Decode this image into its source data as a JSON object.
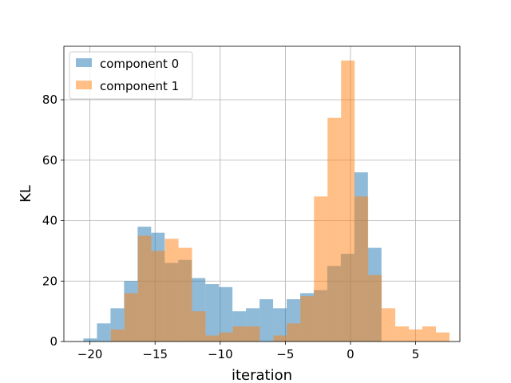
{
  "chart_data": {
    "type": "bar",
    "title": "",
    "xlabel": "iteration",
    "ylabel": "KL",
    "xlim": [
      -22,
      8.4
    ],
    "ylim": [
      0,
      97.7
    ],
    "grid": true,
    "legend_position": "top-left",
    "xticks": [
      -20,
      -15,
      -10,
      -5,
      0,
      5
    ],
    "xtick_labels": [
      "−20",
      "−15",
      "−10",
      "−5",
      "0",
      "5"
    ],
    "yticks": [
      0,
      20,
      40,
      60,
      80
    ],
    "ytick_labels": [
      "0",
      "20",
      "40",
      "60",
      "80"
    ],
    "bin_width": 1.04,
    "series": [
      {
        "name": "component 0",
        "color": "#1f77b4",
        "opacity": 0.5,
        "bin_starts": [
          -20.5,
          -19.46,
          -18.42,
          -17.38,
          -16.34,
          -15.3,
          -14.26,
          -13.22,
          -12.18,
          -11.14,
          -10.1,
          -9.06,
          -8.02,
          -6.98,
          -5.94,
          -4.9,
          -3.86,
          -2.82,
          -1.78,
          -0.74,
          0.3,
          1.34
        ],
        "values": [
          1,
          6,
          11,
          20,
          38,
          36,
          26,
          27,
          21,
          19,
          18,
          10,
          11,
          14,
          11,
          14,
          16,
          17,
          25,
          29,
          56,
          31
        ]
      },
      {
        "name": "component 1",
        "color": "#ff7f0e",
        "opacity": 0.5,
        "bin_starts": [
          -18.4,
          -17.36,
          -16.32,
          -15.28,
          -14.24,
          -13.2,
          -12.16,
          -11.12,
          -10.08,
          -9.04,
          -8.0,
          -6.96,
          -5.92,
          -4.88,
          -3.84,
          -2.8,
          -1.76,
          -0.72,
          0.32,
          1.36,
          2.4,
          3.44,
          4.48,
          5.52,
          6.56
        ],
        "values": [
          4,
          16,
          35,
          30,
          34,
          31,
          10,
          2,
          3,
          5,
          5,
          0,
          2,
          6,
          15,
          48,
          74,
          93,
          48,
          22,
          11,
          5,
          4,
          5,
          3
        ]
      }
    ]
  }
}
